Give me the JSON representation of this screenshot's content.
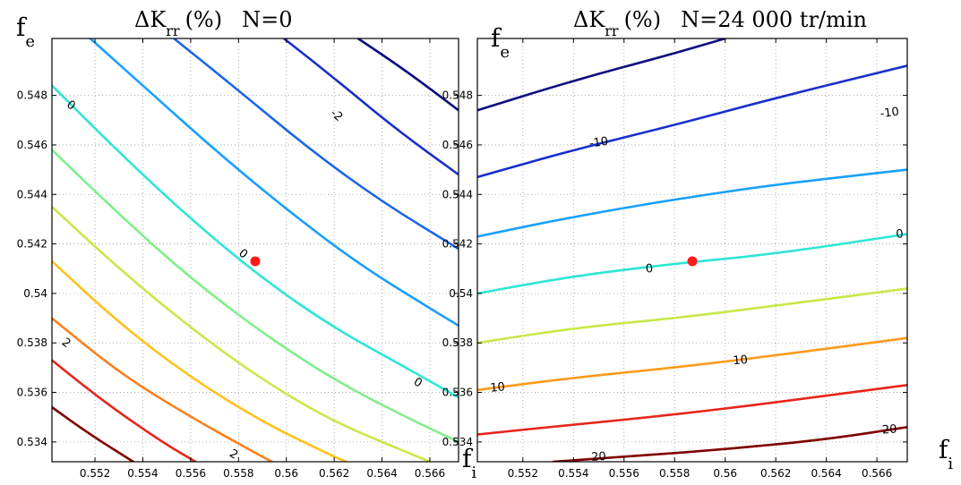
{
  "chart_data": [
    {
      "type": "contour",
      "title": {
        "delta": "ΔK",
        "sub": "rr",
        "rest": "(%)",
        "cond": "N=0"
      },
      "xlabel": {
        "main": "f",
        "sub": "i"
      },
      "ylabel": {
        "main": "f",
        "sub": "e"
      },
      "xlim": [
        0.5502,
        0.5672
      ],
      "ylim": [
        0.5332,
        0.5503
      ],
      "xticks": [
        "0.552",
        "0.554",
        "0.556",
        "0.558",
        "0.56",
        "0.562",
        "0.564",
        "0.566"
      ],
      "yticks": [
        "0.534",
        "0.536",
        "0.538",
        "0.54",
        "0.542",
        "0.544",
        "0.546",
        "0.548"
      ],
      "grid": true,
      "marker": {
        "x": 0.5587,
        "y": 0.5413,
        "color": "#ff1a1a"
      },
      "levels": [
        {
          "color": "#800000",
          "points": [
            [
              0.5502,
              0.5354
            ],
            [
              0.5518,
              0.5343
            ],
            [
              0.5536,
              0.5332
            ]
          ]
        },
        {
          "color": "#e8241a",
          "points": [
            [
              0.5502,
              0.5373
            ],
            [
              0.5524,
              0.5356
            ],
            [
              0.5548,
              0.534
            ],
            [
              0.5562,
              0.5332
            ]
          ]
        },
        {
          "color": "#ff7f1a",
          "points": [
            [
              0.5502,
              0.539
            ],
            [
              0.553,
              0.5368
            ],
            [
              0.556,
              0.535
            ],
            [
              0.559,
              0.5334
            ],
            [
              0.5594,
              0.5332
            ]
          ]
        },
        {
          "color": "#ffc21a",
          "points": [
            [
              0.5502,
              0.5413
            ],
            [
              0.553,
              0.5388
            ],
            [
              0.556,
              0.5366
            ],
            [
              0.559,
              0.5348
            ],
            [
              0.562,
              0.5334
            ],
            [
              0.5625,
              0.5332
            ]
          ]
        },
        {
          "color": "#c8e84a",
          "points": [
            [
              0.5502,
              0.5435
            ],
            [
              0.553,
              0.541
            ],
            [
              0.556,
              0.5386
            ],
            [
              0.559,
              0.5365
            ],
            [
              0.562,
              0.5348
            ],
            [
              0.565,
              0.5336
            ],
            [
              0.566,
              0.5332
            ]
          ]
        },
        {
          "color": "#7ef08a",
          "points": [
            [
              0.5502,
              0.5458
            ],
            [
              0.553,
              0.5432
            ],
            [
              0.556,
              0.5406
            ],
            [
              0.559,
              0.5384
            ],
            [
              0.562,
              0.5365
            ],
            [
              0.565,
              0.535
            ],
            [
              0.5672,
              0.534
            ]
          ]
        },
        {
          "color": "#2ee6d6",
          "points": [
            [
              0.5502,
              0.5484
            ],
            [
              0.553,
              0.5457
            ],
            [
              0.556,
              0.543
            ],
            [
              0.559,
              0.5406
            ],
            [
              0.562,
              0.5386
            ],
            [
              0.565,
              0.537
            ],
            [
              0.5672,
              0.5358
            ]
          ]
        },
        {
          "color": "#1aa0ff",
          "points": [
            [
              0.5518,
              0.5503
            ],
            [
              0.554,
              0.5484
            ],
            [
              0.557,
              0.5458
            ],
            [
              0.56,
              0.5434
            ],
            [
              0.563,
              0.5412
            ],
            [
              0.566,
              0.5394
            ],
            [
              0.5672,
              0.5387
            ]
          ]
        },
        {
          "color": "#1a66e8",
          "points": [
            [
              0.5553,
              0.5503
            ],
            [
              0.558,
              0.5482
            ],
            [
              0.561,
              0.5458
            ],
            [
              0.564,
              0.5437
            ],
            [
              0.5672,
              0.5418
            ]
          ]
        },
        {
          "color": "#1a2fcc",
          "points": [
            [
              0.5599,
              0.5503
            ],
            [
              0.562,
              0.5487
            ],
            [
              0.5645,
              0.5467
            ],
            [
              0.5672,
              0.5448
            ]
          ]
        },
        {
          "color": "#0d0d80",
          "points": [
            [
              0.563,
              0.5503
            ],
            [
              0.565,
              0.549
            ],
            [
              0.5672,
              0.5474
            ]
          ]
        }
      ],
      "labels": [
        {
          "text": "0",
          "x": 0.551,
          "y": 0.5476,
          "rotate": 35
        },
        {
          "text": "-2",
          "x": 0.5621,
          "y": 0.5472,
          "rotate": 40
        },
        {
          "text": "0",
          "x": 0.5582,
          "y": 0.5416,
          "rotate": 38
        },
        {
          "text": "2",
          "x": 0.5508,
          "y": 0.538,
          "rotate": 38
        },
        {
          "text": "0",
          "x": 0.5655,
          "y": 0.5364,
          "rotate": 32
        },
        {
          "text": "2",
          "x": 0.5578,
          "y": 0.5335,
          "rotate": 32
        }
      ]
    },
    {
      "type": "contour",
      "title": {
        "delta": "ΔK",
        "sub": "rr",
        "rest": "(%)",
        "cond": "N=24 000 tr/min"
      },
      "xlabel": {
        "main": "f",
        "sub": "i"
      },
      "ylabel": {
        "main": "f",
        "sub": "e"
      },
      "xlim": [
        0.5502,
        0.5672
      ],
      "ylim": [
        0.5332,
        0.5503
      ],
      "xticks": [
        "0.552",
        "0.554",
        "0.556",
        "0.558",
        "0.56",
        "0.562",
        "0.564",
        "0.566"
      ],
      "yticks": [
        "0.534",
        "0.536",
        "0.538",
        "0.54",
        "0.542",
        "0.544",
        "0.546",
        "0.548"
      ],
      "grid": true,
      "marker": {
        "x": 0.5587,
        "y": 0.5413,
        "color": "#ff1a1a"
      },
      "levels": [
        {
          "color": "#0d0d80",
          "points": [
            [
              0.5502,
              0.5474
            ],
            [
              0.554,
              0.5486
            ],
            [
              0.558,
              0.5497
            ],
            [
              0.56,
              0.5503
            ]
          ]
        },
        {
          "color": "#1a2fcc",
          "points": [
            [
              0.5502,
              0.5447
            ],
            [
              0.554,
              0.5458
            ],
            [
              0.558,
              0.5468
            ],
            [
              0.562,
              0.5479
            ],
            [
              0.5672,
              0.5492
            ]
          ]
        },
        {
          "color": "#1aa0ff",
          "points": [
            [
              0.5502,
              0.5423
            ],
            [
              0.554,
              0.5431
            ],
            [
              0.558,
              0.5438
            ],
            [
              0.562,
              0.5444
            ],
            [
              0.5672,
              0.545
            ]
          ]
        },
        {
          "color": "#2ee6d6",
          "points": [
            [
              0.5502,
              0.54
            ],
            [
              0.554,
              0.5407
            ],
            [
              0.558,
              0.5412
            ],
            [
              0.562,
              0.5416
            ],
            [
              0.5672,
              0.5424
            ]
          ]
        },
        {
          "color": "#c8e84a",
          "points": [
            [
              0.5502,
              0.538
            ],
            [
              0.554,
              0.5386
            ],
            [
              0.558,
              0.539
            ],
            [
              0.562,
              0.5395
            ],
            [
              0.5672,
              0.5402
            ]
          ]
        },
        {
          "color": "#ff9a1a",
          "points": [
            [
              0.5502,
              0.5361
            ],
            [
              0.554,
              0.5366
            ],
            [
              0.558,
              0.537
            ],
            [
              0.562,
              0.5375
            ],
            [
              0.5672,
              0.5382
            ]
          ]
        },
        {
          "color": "#e8241a",
          "points": [
            [
              0.5502,
              0.5343
            ],
            [
              0.554,
              0.5347
            ],
            [
              0.558,
              0.5351
            ],
            [
              0.562,
              0.5356
            ],
            [
              0.5672,
              0.5363
            ]
          ]
        },
        {
          "color": "#800000",
          "points": [
            [
              0.5532,
              0.5332
            ],
            [
              0.556,
              0.5334
            ],
            [
              0.56,
              0.5337
            ],
            [
              0.564,
              0.5341
            ],
            [
              0.5672,
              0.5346
            ]
          ]
        }
      ],
      "labels": [
        {
          "text": "-10",
          "x": 0.5665,
          "y": 0.5473,
          "rotate": -8
        },
        {
          "text": "-10",
          "x": 0.555,
          "y": 0.5461,
          "rotate": -8
        },
        {
          "text": "0",
          "x": 0.5669,
          "y": 0.5424,
          "rotate": -5
        },
        {
          "text": "0",
          "x": 0.557,
          "y": 0.541,
          "rotate": -5
        },
        {
          "text": "10",
          "x": 0.5606,
          "y": 0.5373,
          "rotate": -5
        },
        {
          "text": "10",
          "x": 0.551,
          "y": 0.5362,
          "rotate": -5
        },
        {
          "text": "20",
          "x": 0.5665,
          "y": 0.5345,
          "rotate": -4
        },
        {
          "text": "20",
          "x": 0.555,
          "y": 0.5334,
          "rotate": -4
        }
      ]
    }
  ]
}
